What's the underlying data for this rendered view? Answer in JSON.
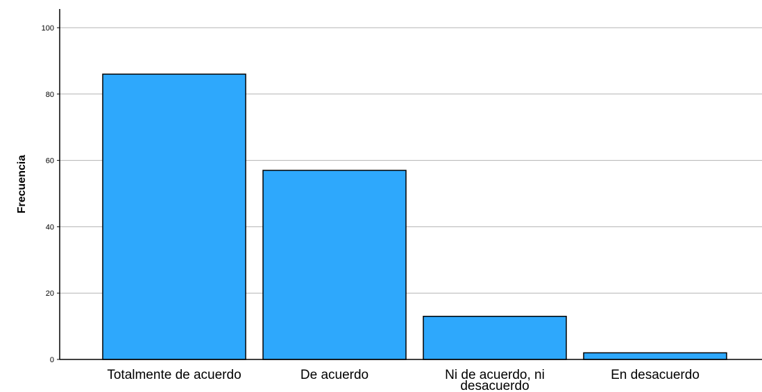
{
  "chart_data": {
    "type": "bar",
    "title": "",
    "xlabel": "",
    "ylabel": "Frecuencia",
    "categories": [
      [
        "Totalmente de acuerdo"
      ],
      [
        "De acuerdo"
      ],
      [
        "Ni de acuerdo, ni",
        "desacuerdo"
      ],
      [
        "En desacuerdo"
      ]
    ],
    "values": [
      86,
      57,
      13,
      2
    ],
    "ylim": [
      0,
      105
    ],
    "yticks": [
      "0",
      "20",
      "40",
      "60",
      "80",
      "100"
    ],
    "grid": true,
    "legend": "none",
    "colors": {
      "bar": "#2ea8fc",
      "bar_edge": "#000000",
      "grid": "#b3b3b3",
      "axis": "#000000"
    }
  }
}
